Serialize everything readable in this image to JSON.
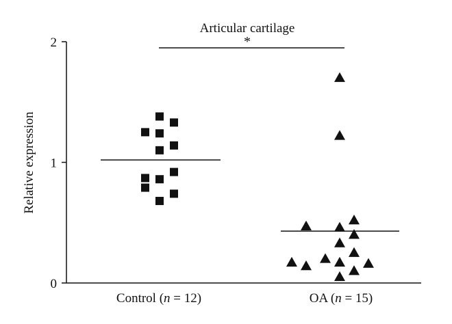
{
  "chart_data": {
    "type": "scatter",
    "title": "Articular cartilage",
    "ylabel": "Relative expression",
    "xlabel": "",
    "ylim": [
      0,
      2
    ],
    "yticks": [
      "0",
      "1",
      "2"
    ],
    "significance": "*",
    "groups": [
      {
        "label_prefix": "Control (",
        "label_n": "n",
        "label_suffix": " = 12)",
        "marker": "square",
        "mean": 1.02,
        "values": [
          1.38,
          1.33,
          1.25,
          1.24,
          1.14,
          1.1,
          0.92,
          0.87,
          0.86,
          0.79,
          0.74,
          0.68
        ]
      },
      {
        "label_prefix": "OA (",
        "label_n": "n",
        "label_suffix": " = 15)",
        "marker": "triangle",
        "mean": 0.43,
        "values": [
          1.7,
          1.22,
          0.52,
          0.47,
          0.46,
          0.4,
          0.33,
          0.25,
          0.2,
          0.17,
          0.17,
          0.16,
          0.14,
          0.1,
          0.05
        ]
      }
    ]
  }
}
